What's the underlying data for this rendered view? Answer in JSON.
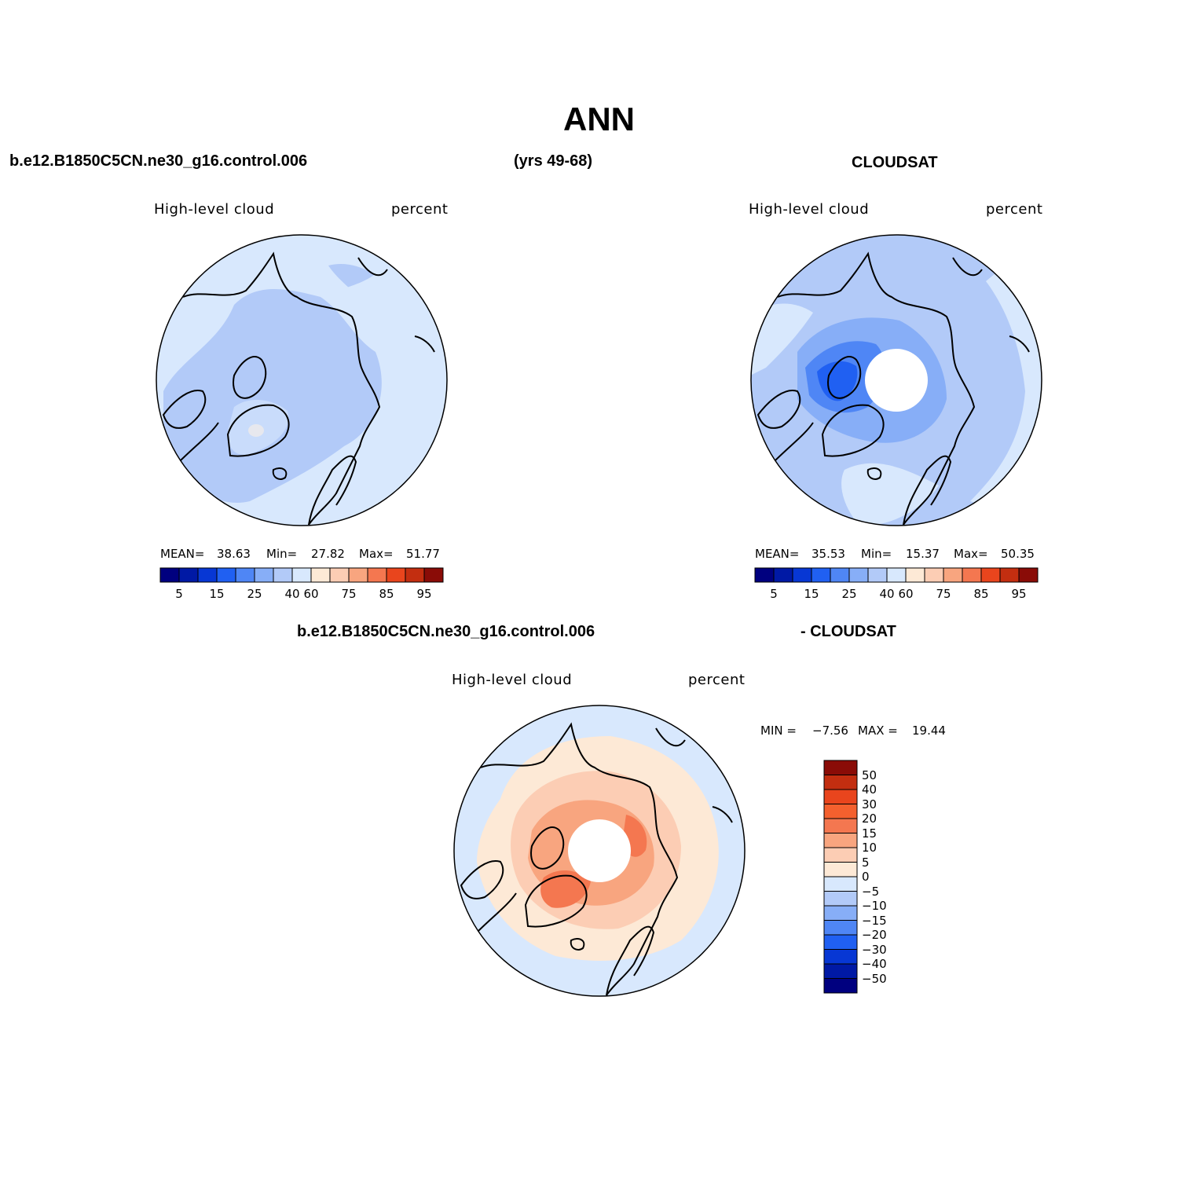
{
  "page": {
    "title": "ANN",
    "case_name": "b.e12.B1850C5CN.ne30_g16.control.006",
    "years": "(yrs 49-68)",
    "obs_name": "CLOUDSAT",
    "diff_case": "b.e12.B1850C5CN.ne30_g16.control.006",
    "diff_obs": "- CLOUDSAT"
  },
  "colors": {
    "blue_palette": [
      "#00007f",
      "#0019a5",
      "#0737d4",
      "#2060f2",
      "#4f86f5",
      "#87aef7",
      "#b2caf8",
      "#d8e8fd",
      "#fde9d6",
      "#fccdb4",
      "#f8a57f",
      "#f47750",
      "#e9451d",
      "#c32e10",
      "#8a0c07"
    ],
    "diff_palette": [
      "#00007f",
      "#0019a5",
      "#0737d4",
      "#2060f2",
      "#4f86f5",
      "#87aef7",
      "#b2caf8",
      "#d8e8fd",
      "#fde9d6",
      "#fccdb4",
      "#f8a57f",
      "#f47750",
      "#f4602e",
      "#e9451d",
      "#c32e10",
      "#8a0c07"
    ],
    "coast": "#000000"
  },
  "chart_data": [
    {
      "type": "heatmap",
      "id": "model",
      "projection": "north-polar-stereographic",
      "variable": "High-level cloud",
      "units": "percent",
      "stats": {
        "mean_label": "MEAN=",
        "mean": "38.63",
        "min_label": "Min=",
        "min": "27.82",
        "max_label": "Max=",
        "max": "51.77"
      },
      "colorbar_ticks": [
        "5",
        "15",
        "25",
        "40",
        "60",
        "75",
        "85",
        "95"
      ],
      "colorbar_levels": [
        5,
        10,
        15,
        20,
        25,
        30,
        35,
        40,
        50,
        60,
        65,
        70,
        75,
        80,
        85,
        90,
        95
      ],
      "dominant_values": [
        35,
        40,
        45
      ]
    },
    {
      "type": "heatmap",
      "id": "obs",
      "projection": "north-polar-stereographic",
      "variable": "High-level cloud",
      "units": "percent",
      "stats": {
        "mean_label": "MEAN=",
        "mean": "35.53",
        "min_label": "Min=",
        "min": "15.37",
        "max_label": "Max=",
        "max": "50.35"
      },
      "colorbar_ticks": [
        "5",
        "15",
        "25",
        "40",
        "60",
        "75",
        "85",
        "95"
      ],
      "colorbar_levels": [
        5,
        10,
        15,
        20,
        25,
        30,
        35,
        40,
        50,
        60,
        65,
        70,
        75,
        80,
        85,
        90,
        95
      ],
      "missing_region": "pole (>82N)"
    },
    {
      "type": "heatmap",
      "id": "diff",
      "projection": "north-polar-stereographic",
      "variable": "High-level cloud",
      "units": "percent",
      "stats": {
        "min_label": "MIN =",
        "min": "−7.56",
        "max_label": "MAX =",
        "max": "19.44"
      },
      "colorbar_ticks": [
        "50",
        "40",
        "30",
        "20",
        "15",
        "10",
        "5",
        "0",
        "−5",
        "−10",
        "−15",
        "−20",
        "−30",
        "−40",
        "−50"
      ],
      "missing_region": "pole (>82N)"
    }
  ]
}
